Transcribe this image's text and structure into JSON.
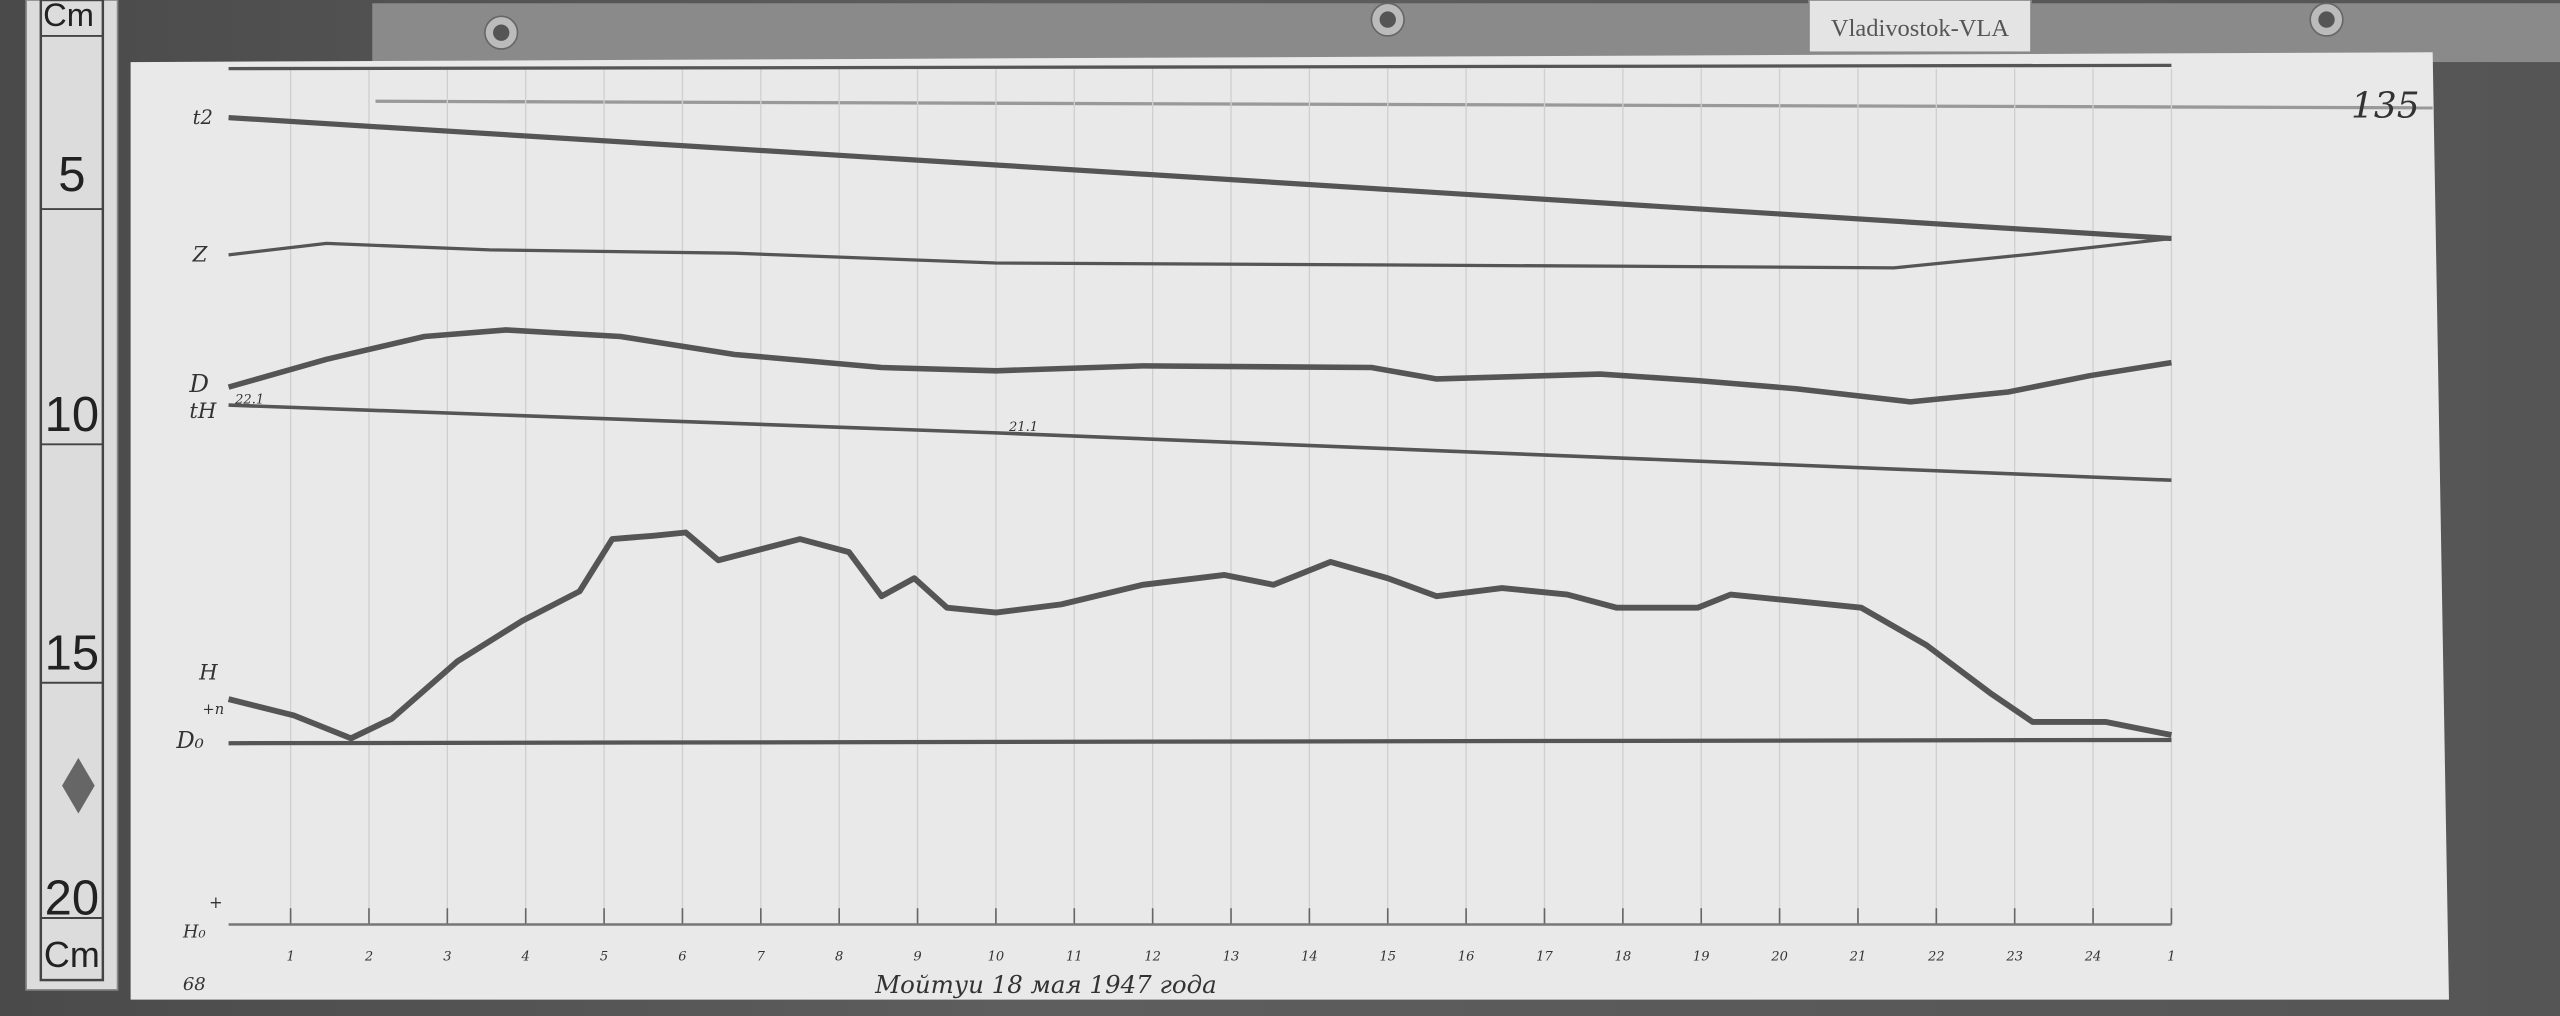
{
  "station_label": "Vladivostok-VLA",
  "sheet_number": "135",
  "caption": "Мойтуи 18 мая 1947 года",
  "corner_mark": "68",
  "ruler": {
    "unit_top": "Cm",
    "unit_bottom": "Cm",
    "marks": [
      "5",
      "10",
      "15",
      "20"
    ]
  },
  "channel_labels": {
    "t2": "t2",
    "z": "Z",
    "d": "D",
    "th": "tH",
    "h": "H",
    "d0": "D₀",
    "h0": "H₀",
    "plus_n": "+n",
    "plus": "+"
  },
  "annotations": {
    "th_start": "22.1",
    "th_mid": "21.1"
  },
  "chart_data": {
    "type": "line",
    "title": "",
    "xlabel": "",
    "ylabel": "",
    "x_tick_labels": [
      "1",
      "2",
      "3",
      "4",
      "5",
      "6",
      "7",
      "8",
      "9",
      "10",
      "11",
      "12",
      "13",
      "14",
      "15",
      "16",
      "17",
      "18",
      "19",
      "20",
      "21",
      "22",
      "23",
      "24",
      "1"
    ],
    "grid": true,
    "traces": [
      "t2 baseline",
      "Z",
      "D",
      "tH",
      "H",
      "D0/H0 baselines"
    ],
    "colors": {
      "paper": "#e9e9e9",
      "trace": "#555555",
      "background": "#555555"
    }
  }
}
